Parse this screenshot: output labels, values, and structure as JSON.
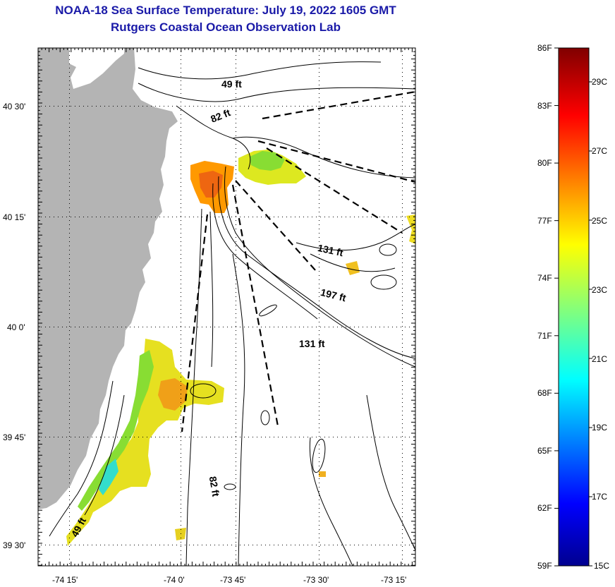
{
  "title": {
    "line1": "NOAA-18 Sea Surface Temperature:  July 19, 2022 1605 GMT",
    "line2": "Rutgers Coastal Ocean Observation Lab"
  },
  "axes": {
    "lat_labels": [
      "40 30'",
      "40 15'",
      "40 0'",
      "39 45'",
      "39 30'"
    ],
    "lon_labels": [
      "-74 15'",
      "-74 0'",
      "-73 45'",
      "-73 30'",
      "-73 15'"
    ]
  },
  "depth_labels": [
    "49 ft",
    "82 ft",
    "131 ft",
    "197 ft",
    "131 ft",
    "82 ft",
    "49 ft"
  ],
  "colorbar": {
    "f_labels": [
      "86F",
      "83F",
      "80F",
      "77F",
      "74F",
      "71F",
      "68F",
      "65F",
      "62F",
      "59F"
    ],
    "c_labels": [
      "29C",
      "27C",
      "25C",
      "23C",
      "21C",
      "19C",
      "17C",
      "15C"
    ]
  },
  "colors": {
    "title": "#1a1aa8",
    "land": "#b4b4b4",
    "warm": "#ff9900",
    "yellow": "#e8ee20",
    "green": "#88dd33",
    "cyan": "#33ddcc"
  }
}
